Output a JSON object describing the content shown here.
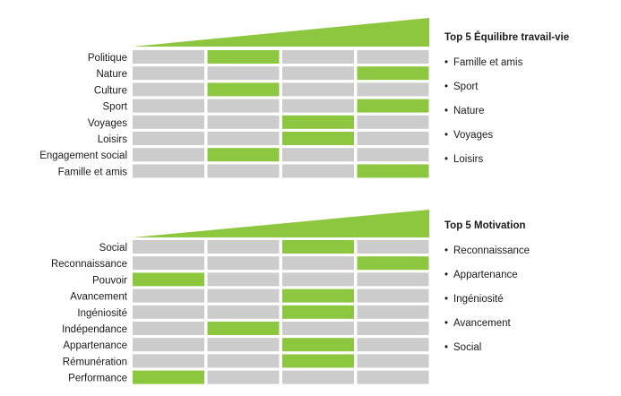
{
  "colors": {
    "accent": "#8dc63f",
    "cell": "#cccccc",
    "text": "#1a1a1a"
  },
  "chart_data": [
    {
      "type": "heatmap",
      "title": "",
      "levels": 4,
      "categories": [
        "Politique",
        "Nature",
        "Culture",
        "Sport",
        "Voyages",
        "Loisirs",
        "Engagement social",
        "Famille et amis"
      ],
      "highlighted_level": [
        2,
        4,
        2,
        4,
        3,
        3,
        2,
        4
      ],
      "top_title": "Top 5 Équilibre travail-vie",
      "top_items": [
        "Famille et amis",
        "Sport",
        "Nature",
        "Voyages",
        "Loisirs"
      ]
    },
    {
      "type": "heatmap",
      "title": "",
      "levels": 4,
      "categories": [
        "Social",
        "Reconnaissance",
        "Pouvoir",
        "Avancement",
        "Ingéniosité",
        "Indépendance",
        "Appartenance",
        "Rémunération",
        "Performance"
      ],
      "highlighted_level": [
        3,
        4,
        1,
        3,
        3,
        2,
        3,
        3,
        1
      ],
      "top_title": "Top 5 Motivation",
      "top_items": [
        "Reconnaissance",
        "Appartenance",
        "Ingéniosité",
        "Avancement",
        "Social"
      ]
    }
  ]
}
